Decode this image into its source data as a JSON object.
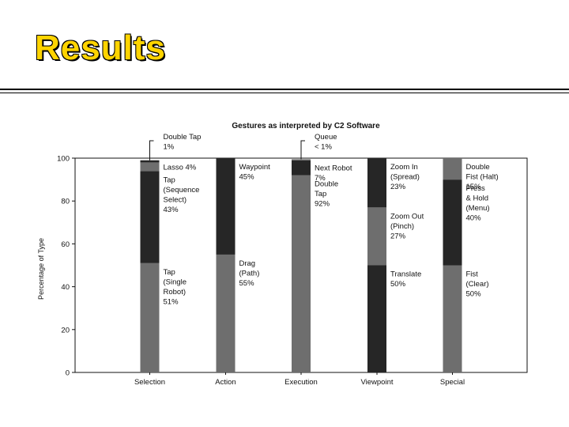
{
  "slide": {
    "title": "Results"
  },
  "chart_data": {
    "type": "bar",
    "stacked": true,
    "title": "Gestures as interpreted by C2 Software",
    "xlabel": "",
    "ylabel": "Percentage of Type",
    "ylim": [
      0,
      100
    ],
    "yticks": [
      0,
      20,
      40,
      60,
      80,
      100
    ],
    "grid": false,
    "categories": [
      "Selection",
      "Action",
      "Execution",
      "Viewpoint",
      "Special"
    ],
    "colors": {
      "gray": "#6e6e6e",
      "dark": "#262626"
    },
    "stacks": [
      {
        "category": "Selection",
        "segments": [
          {
            "label": [
              "Tap",
              "(Single",
              "Robot)",
              "51%"
            ],
            "value": 51,
            "color": "gray"
          },
          {
            "label": [
              "Tap",
              "(Sequence",
              "Select)",
              "43%"
            ],
            "value": 43,
            "color": "dark"
          },
          {
            "label": [
              "Lasso 4%"
            ],
            "value": 4,
            "color": "gray"
          },
          {
            "label": [
              "Double Tap",
              "1%"
            ],
            "value": 1,
            "color": "dark",
            "callout": true
          }
        ]
      },
      {
        "category": "Action",
        "segments": [
          {
            "label": [
              "Drag",
              "(Path)",
              "55%"
            ],
            "value": 55,
            "color": "gray"
          },
          {
            "label": [
              "Waypoint",
              "45%"
            ],
            "value": 45,
            "color": "dark"
          }
        ]
      },
      {
        "category": "Execution",
        "segments": [
          {
            "label": [
              "Double",
              "Tap",
              "92%"
            ],
            "value": 92,
            "color": "gray"
          },
          {
            "label": [
              "Next Robot",
              "7%"
            ],
            "value": 7,
            "color": "dark"
          },
          {
            "label": [
              "Queue",
              "< 1%"
            ],
            "value": 0.5,
            "color": "gray",
            "callout": true
          }
        ]
      },
      {
        "category": "Viewpoint",
        "segments": [
          {
            "label": [
              "Translate",
              "50%"
            ],
            "value": 50,
            "color": "dark"
          },
          {
            "label": [
              "Zoom Out",
              "(Pinch)",
              "27%"
            ],
            "value": 27,
            "color": "gray"
          },
          {
            "label": [
              "Zoom In",
              "(Spread)",
              "23%"
            ],
            "value": 23,
            "color": "dark"
          }
        ]
      },
      {
        "category": "Special",
        "segments": [
          {
            "label": [
              "Fist",
              "(Clear)",
              "50%"
            ],
            "value": 50,
            "color": "gray"
          },
          {
            "label": [
              "Press",
              "& Hold",
              "(Menu)",
              "40%"
            ],
            "value": 40,
            "color": "dark"
          },
          {
            "label": [
              "Double",
              "Fist (Halt)",
              "15%"
            ],
            "value": 15,
            "color": "gray"
          }
        ]
      }
    ]
  }
}
